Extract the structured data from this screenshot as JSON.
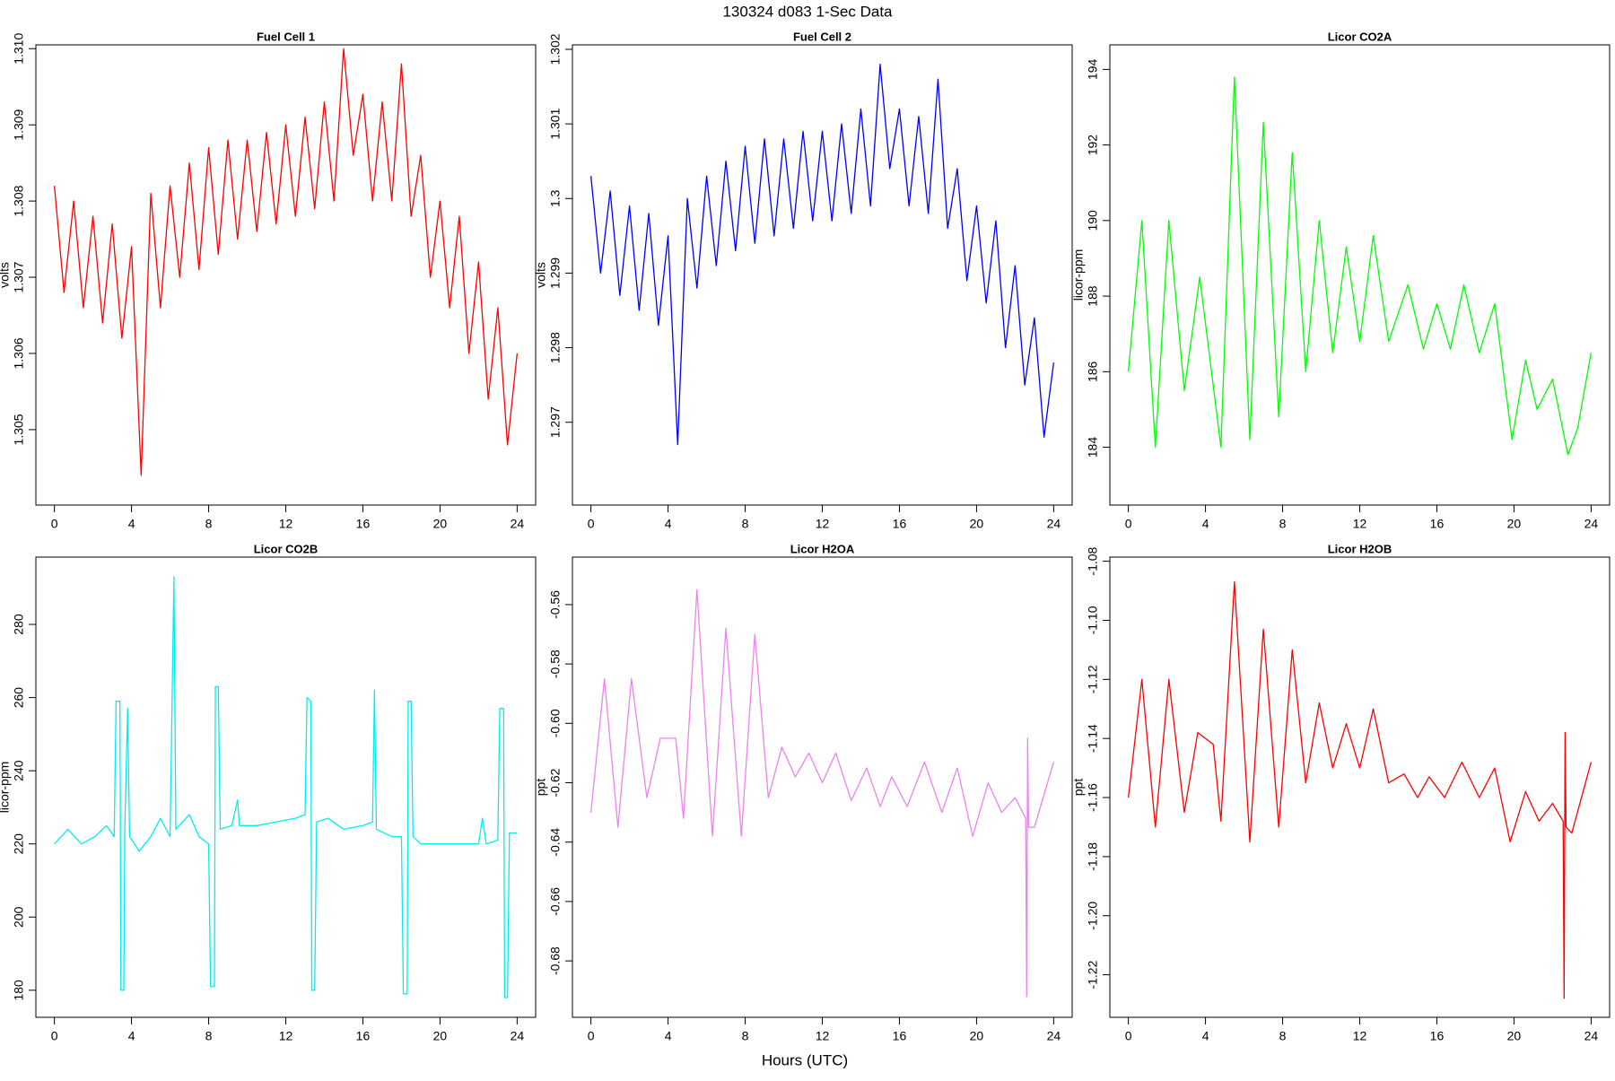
{
  "title": "130324   d083   1-Sec Data",
  "xlabel": "Hours (UTC)",
  "chart_data": [
    {
      "type": "line",
      "title": "Fuel Cell 1",
      "ylabel": "volts",
      "color": "#ff0000",
      "xlim": [
        -0.96,
        24.96
      ],
      "xticks": [
        0,
        4,
        8,
        12,
        16,
        20,
        24
      ],
      "ylim": [
        1.30401,
        1.31005
      ],
      "yticks": [
        1.305,
        1.306,
        1.307,
        1.308,
        1.309,
        {
          "value": 1.31,
          "label": "1.310"
        }
      ],
      "x": [
        0,
        0.5,
        1,
        1.5,
        2,
        2.5,
        3,
        3.5,
        4,
        4.5,
        5,
        5.5,
        6,
        6.5,
        7,
        7.5,
        8,
        8.5,
        9,
        9.5,
        10,
        10.5,
        11,
        11.5,
        12,
        12.5,
        13,
        13.5,
        14,
        14.5,
        15,
        15.5,
        16,
        16.5,
        17,
        17.5,
        18,
        18.5,
        19,
        19.5,
        20,
        20.5,
        21,
        21.5,
        22,
        22.5,
        23,
        23.5,
        24
      ],
      "values": [
        1.3082,
        1.3068,
        1.308,
        1.3066,
        1.3078,
        1.3064,
        1.3077,
        1.3062,
        1.3074,
        1.3044,
        1.3081,
        1.3066,
        1.3082,
        1.307,
        1.3085,
        1.3071,
        1.3087,
        1.3073,
        1.3088,
        1.3075,
        1.3088,
        1.3076,
        1.3089,
        1.3077,
        1.309,
        1.3078,
        1.3091,
        1.3079,
        1.3093,
        1.308,
        1.31,
        1.3086,
        1.3094,
        1.308,
        1.3093,
        1.308,
        1.3098,
        1.3078,
        1.3086,
        1.307,
        1.308,
        1.3066,
        1.3078,
        1.306,
        1.3072,
        1.3054,
        1.3066,
        1.3048,
        1.306
      ]
    },
    {
      "type": "line",
      "title": "Fuel Cell 2",
      "ylabel": "volts",
      "color": "#0000ff",
      "xlim": [
        -0.96,
        24.96
      ],
      "xticks": [
        0,
        4,
        8,
        12,
        16,
        20,
        24
      ],
      "ylim": [
        1.29589,
        1.30206
      ],
      "yticks": [
        1.297,
        1.298,
        1.299,
        1.3,
        1.301,
        1.302
      ],
      "x": [
        0,
        0.5,
        1,
        1.5,
        2,
        2.5,
        3,
        3.5,
        4,
        4.5,
        5,
        5.5,
        6,
        6.5,
        7,
        7.5,
        8,
        8.5,
        9,
        9.5,
        10,
        10.5,
        11,
        11.5,
        12,
        12.5,
        13,
        13.5,
        14,
        14.5,
        15,
        15.5,
        16,
        16.5,
        17,
        17.5,
        18,
        18.5,
        19,
        19.5,
        20,
        20.5,
        21,
        21.5,
        22,
        22.5,
        23,
        23.5,
        24
      ],
      "values": [
        1.3003,
        1.299,
        1.3001,
        1.2987,
        1.2999,
        1.2985,
        1.2998,
        1.2983,
        1.2995,
        1.2967,
        1.3,
        1.2988,
        1.3003,
        1.2991,
        1.3005,
        1.2993,
        1.3007,
        1.2994,
        1.3008,
        1.2995,
        1.3008,
        1.2996,
        1.3009,
        1.2997,
        1.3009,
        1.2997,
        1.301,
        1.2998,
        1.3012,
        1.2999,
        1.3018,
        1.3004,
        1.3012,
        1.2999,
        1.3011,
        1.2998,
        1.3016,
        1.2996,
        1.3004,
        1.2989,
        1.2999,
        1.2986,
        1.2997,
        1.298,
        1.2991,
        1.2975,
        1.2984,
        1.2968,
        1.2978
      ]
    },
    {
      "type": "line",
      "title": "Licor CO2A",
      "ylabel": "licor-ppm",
      "color": "#00ff00",
      "xlim": [
        -0.96,
        24.96
      ],
      "xticks": [
        0,
        4,
        8,
        12,
        16,
        20,
        24
      ],
      "ylim": [
        182.47,
        194.65
      ],
      "yticks": [
        184,
        186,
        188,
        190,
        192,
        194
      ],
      "x": [
        0,
        0.7,
        1.4,
        2.1,
        2.9,
        3.7,
        4.8,
        5.5,
        6.3,
        7,
        7.8,
        8.5,
        9.2,
        9.9,
        10.6,
        11.3,
        12,
        12.7,
        13.5,
        14.5,
        15.3,
        16,
        16.7,
        17.4,
        18.2,
        19,
        19.9,
        20.6,
        21.2,
        22,
        22.8,
        23.3,
        24
      ],
      "values": [
        186,
        190,
        184,
        190,
        185.5,
        188.5,
        184,
        193.8,
        184.2,
        192.6,
        184.8,
        191.8,
        186,
        190,
        186.5,
        189.3,
        186.8,
        189.6,
        186.8,
        188.3,
        186.6,
        187.8,
        186.6,
        188.3,
        186.5,
        187.8,
        184.2,
        186.3,
        185,
        185.8,
        183.8,
        184.5,
        186.5
      ]
    },
    {
      "type": "line",
      "title": "Licor CO2B",
      "ylabel": "licor-ppm",
      "color": "#00eeee",
      "xlim": [
        -0.96,
        24.96
      ],
      "xticks": [
        0,
        4,
        8,
        12,
        16,
        20,
        24
      ],
      "ylim": [
        172.6,
        298.4
      ],
      "yticks": [
        180,
        200,
        220,
        240,
        260,
        280
      ],
      "x": [
        0,
        0.7,
        1.4,
        2.1,
        2.7,
        3.1,
        3.2,
        3.4,
        3.45,
        3.6,
        3.65,
        3.8,
        3.9,
        4.4,
        5,
        5.5,
        6,
        6.2,
        6.3,
        7,
        7.5,
        8,
        8.1,
        8.3,
        8.35,
        8.5,
        8.6,
        9.2,
        9.5,
        9.6,
        10.5,
        11.5,
        12.5,
        13,
        13.1,
        13.3,
        13.35,
        13.5,
        13.6,
        14.2,
        15,
        16,
        16.5,
        16.6,
        16.7,
        17.5,
        18,
        18.1,
        18.3,
        18.35,
        18.5,
        18.6,
        19,
        20,
        21.5,
        22,
        22.2,
        22.4,
        23,
        23.1,
        23.3,
        23.35,
        23.5,
        23.6,
        24
      ],
      "values": [
        220,
        224,
        220,
        222,
        225,
        222,
        259,
        259,
        180,
        180,
        224,
        257,
        222,
        218,
        222,
        227,
        222,
        293,
        224,
        228,
        222,
        220,
        181,
        181,
        263,
        263,
        224,
        225,
        232,
        225,
        225,
        226,
        227,
        228,
        260,
        259,
        180,
        180,
        226,
        227,
        224,
        225,
        226,
        262,
        224,
        222,
        222,
        179,
        179,
        259,
        259,
        222,
        220,
        220,
        220,
        220,
        227,
        220,
        221,
        257,
        257,
        178,
        178,
        223,
        223
      ]
    },
    {
      "type": "line",
      "title": "Licor H2OA",
      "ylabel": "ppt",
      "color": "#ee82ee",
      "xlim": [
        -0.96,
        24.96
      ],
      "xticks": [
        0,
        4,
        8,
        12,
        16,
        20,
        24
      ],
      "ylim": [
        -0.699,
        -0.544
      ],
      "yticks": [
        -0.68,
        -0.66,
        -0.64,
        -0.62,
        {
          "value": -0.6,
          "label": "-0.60"
        },
        -0.58,
        -0.56
      ],
      "x": [
        0,
        0.7,
        1.4,
        2.1,
        2.9,
        3.6,
        4.4,
        4.8,
        5.5,
        6.3,
        7,
        7.8,
        8.5,
        9.2,
        9.9,
        10.6,
        11.3,
        12,
        12.7,
        13.5,
        14.3,
        15,
        15.6,
        16.4,
        17.3,
        18.2,
        19,
        19.8,
        20.6,
        21.3,
        22,
        22.55,
        22.6,
        22.65,
        22.7,
        23,
        24
      ],
      "values": [
        -0.63,
        -0.585,
        -0.635,
        -0.585,
        -0.625,
        -0.605,
        -0.605,
        -0.632,
        -0.555,
        -0.638,
        -0.568,
        -0.638,
        -0.57,
        -0.625,
        -0.608,
        -0.618,
        -0.61,
        -0.62,
        -0.61,
        -0.626,
        -0.615,
        -0.628,
        -0.618,
        -0.628,
        -0.613,
        -0.63,
        -0.615,
        -0.638,
        -0.62,
        -0.63,
        -0.625,
        -0.632,
        -0.692,
        -0.605,
        -0.635,
        -0.635,
        -0.613
      ]
    },
    {
      "type": "line",
      "title": "Licor H2OB",
      "ylabel": "ppt",
      "color": "#ff0000",
      "xlim": [
        -0.96,
        24.96
      ],
      "xticks": [
        0,
        4,
        8,
        12,
        16,
        20,
        24
      ],
      "ylim": [
        -1.2344,
        -1.0786
      ],
      "yticks": [
        -1.22,
        {
          "value": -1.2,
          "label": "-1.20"
        },
        -1.18,
        -1.16,
        -1.14,
        -1.12,
        {
          "value": -1.1,
          "label": "-1.10"
        },
        -1.08
      ],
      "x": [
        0,
        0.7,
        1.4,
        2.1,
        2.9,
        3.6,
        4.4,
        4.8,
        5.5,
        6.3,
        7,
        7.8,
        8.5,
        9.2,
        9.9,
        10.6,
        11.3,
        12,
        12.7,
        13.5,
        14.3,
        15,
        15.6,
        16.4,
        17.3,
        18.2,
        19,
        19.8,
        20.6,
        21.3,
        22,
        22.55,
        22.6,
        22.65,
        22.7,
        23,
        24
      ],
      "values": [
        -1.16,
        -1.12,
        -1.17,
        -1.12,
        -1.165,
        -1.138,
        -1.142,
        -1.168,
        -1.087,
        -1.175,
        -1.103,
        -1.17,
        -1.11,
        -1.155,
        -1.128,
        -1.15,
        -1.135,
        -1.15,
        -1.13,
        -1.155,
        -1.152,
        -1.16,
        -1.153,
        -1.16,
        -1.148,
        -1.16,
        -1.15,
        -1.175,
        -1.158,
        -1.168,
        -1.162,
        -1.168,
        -1.228,
        -1.138,
        -1.17,
        -1.172,
        -1.148
      ]
    }
  ]
}
